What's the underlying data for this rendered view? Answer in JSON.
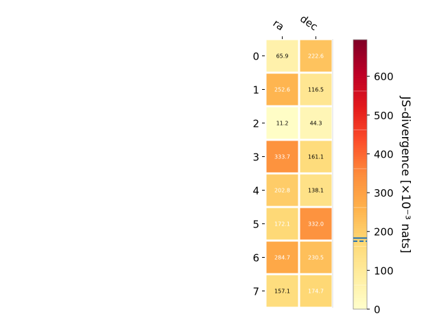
{
  "chart_data": {
    "type": "heatmap",
    "title": "",
    "columns": [
      "ra",
      "dec"
    ],
    "rows": [
      "0",
      "1",
      "2",
      "3",
      "4",
      "5",
      "6",
      "7"
    ],
    "values": [
      [
        65.9,
        222.6
      ],
      [
        252.6,
        116.5
      ],
      [
        11.2,
        44.3
      ],
      [
        333.7,
        161.1
      ],
      [
        202.8,
        138.1
      ],
      [
        172.1,
        332.0
      ],
      [
        284.7,
        230.5
      ],
      [
        157.1,
        174.7
      ]
    ],
    "value_labels": [
      [
        "65.9",
        "222.6"
      ],
      [
        "252.6",
        "116.5"
      ],
      [
        "11.2",
        "44.3"
      ],
      [
        "333.7",
        "161.1"
      ],
      [
        "202.8",
        "138.1"
      ],
      [
        "172.1",
        "332.0"
      ],
      [
        "284.7",
        "230.5"
      ],
      [
        "157.1",
        "174.7"
      ]
    ],
    "colormap": "YlOrRd",
    "colorbar": {
      "label": "JS-divergence [×10⁻³ nats]",
      "range": [
        0,
        694
      ],
      "ticks": [
        0,
        100,
        200,
        300,
        400,
        500,
        600
      ],
      "tick_labels": [
        "0",
        "100",
        "200",
        "300",
        "400",
        "500",
        "600"
      ],
      "marker_solid": 183,
      "marker_dashed": 175,
      "marker_color": "#1f6fb4"
    }
  }
}
